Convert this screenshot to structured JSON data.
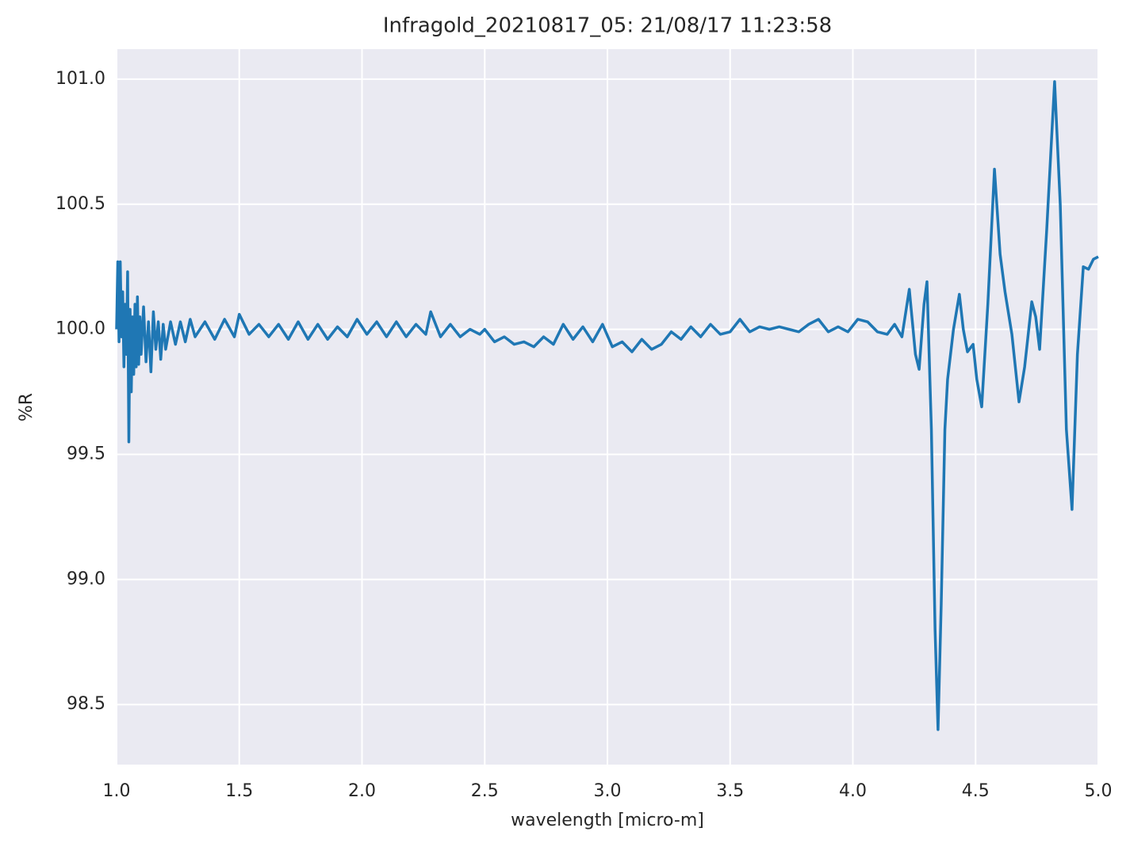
{
  "chart_data": {
    "type": "line",
    "title": "Infragold_20210817_05:  21/08/17 11:23:58",
    "x_label": "wavelength [micro-m]",
    "y_label": "%R",
    "grid": true,
    "background": "#eaeaf2",
    "xlim": [
      1.0,
      5.0
    ],
    "ylim": [
      98.26,
      101.12
    ],
    "xticks": [
      {
        "value": 1,
        "label": "1.0"
      },
      1.5,
      {
        "value": 2,
        "label": "2.0"
      },
      2.5,
      {
        "value": 3,
        "label": "3.0"
      },
      3.5,
      {
        "value": 4,
        "label": "4.0"
      },
      4.5,
      {
        "value": 5,
        "label": "5.0"
      }
    ],
    "yticks": [
      98.5,
      {
        "value": 99,
        "label": "99.0"
      },
      99.5,
      {
        "value": 100,
        "label": "100.0"
      },
      100.5,
      {
        "value": 101,
        "label": "101.0"
      }
    ],
    "x": [
      1.0,
      1.005,
      1.01,
      1.015,
      1.02,
      1.025,
      1.03,
      1.035,
      1.04,
      1.045,
      1.05,
      1.055,
      1.06,
      1.065,
      1.07,
      1.075,
      1.08,
      1.085,
      1.09,
      1.095,
      1.1,
      1.11,
      1.12,
      1.13,
      1.14,
      1.15,
      1.16,
      1.17,
      1.18,
      1.19,
      1.2,
      1.22,
      1.24,
      1.26,
      1.28,
      1.3,
      1.32,
      1.36,
      1.4,
      1.44,
      1.48,
      1.5,
      1.54,
      1.58,
      1.62,
      1.66,
      1.7,
      1.74,
      1.78,
      1.82,
      1.86,
      1.9,
      1.94,
      1.98,
      2.02,
      2.06,
      2.1,
      2.14,
      2.18,
      2.22,
      2.26,
      2.28,
      2.32,
      2.36,
      2.4,
      2.44,
      2.48,
      2.5,
      2.54,
      2.58,
      2.62,
      2.66,
      2.7,
      2.74,
      2.78,
      2.82,
      2.86,
      2.9,
      2.94,
      2.98,
      3.02,
      3.06,
      3.1,
      3.14,
      3.18,
      3.22,
      3.26,
      3.3,
      3.34,
      3.38,
      3.42,
      3.46,
      3.5,
      3.54,
      3.58,
      3.62,
      3.66,
      3.7,
      3.74,
      3.78,
      3.82,
      3.86,
      3.9,
      3.94,
      3.98,
      4.02,
      4.06,
      4.1,
      4.14,
      4.17,
      4.2,
      4.23,
      4.255,
      4.27,
      4.29,
      4.302,
      4.32,
      4.335,
      4.347,
      4.36,
      4.375,
      4.386,
      4.41,
      4.434,
      4.45,
      4.467,
      4.49,
      4.505,
      4.525,
      4.55,
      4.577,
      4.6,
      4.62,
      4.648,
      4.677,
      4.7,
      4.729,
      4.745,
      4.761,
      4.79,
      4.822,
      4.845,
      4.87,
      4.893,
      4.915,
      4.939,
      4.96,
      4.98,
      5.0
    ],
    "series": [
      {
        "color": "#1f77b4",
        "values": [
          100.0,
          100.27,
          99.95,
          100.27,
          99.97,
          100.15,
          99.85,
          100.1,
          99.9,
          100.23,
          99.55,
          100.08,
          99.75,
          100.05,
          99.82,
          100.1,
          99.85,
          100.13,
          99.86,
          100.05,
          99.9,
          100.09,
          99.87,
          100.03,
          99.83,
          100.07,
          99.92,
          100.03,
          99.88,
          100.02,
          99.92,
          100.03,
          99.94,
          100.03,
          99.95,
          100.04,
          99.97,
          100.03,
          99.96,
          100.04,
          99.97,
          100.06,
          99.98,
          100.02,
          99.97,
          100.02,
          99.96,
          100.03,
          99.96,
          100.02,
          99.96,
          100.01,
          99.97,
          100.04,
          99.98,
          100.03,
          99.97,
          100.03,
          99.97,
          100.02,
          99.98,
          100.07,
          99.97,
          100.02,
          99.97,
          100.0,
          99.98,
          100.0,
          99.95,
          99.97,
          99.94,
          99.95,
          99.93,
          99.97,
          99.94,
          100.02,
          99.96,
          100.01,
          99.95,
          100.02,
          99.93,
          99.95,
          99.91,
          99.96,
          99.92,
          99.94,
          99.99,
          99.96,
          100.01,
          99.97,
          100.02,
          99.98,
          99.99,
          100.04,
          99.99,
          100.01,
          100.0,
          100.01,
          100.0,
          99.99,
          100.02,
          100.04,
          99.99,
          100.01,
          99.99,
          100.04,
          100.03,
          99.99,
          99.98,
          100.02,
          99.97,
          100.16,
          99.9,
          99.84,
          100.1,
          100.19,
          99.6,
          98.8,
          98.4,
          98.9,
          99.6,
          99.8,
          100.0,
          100.14,
          100.0,
          99.91,
          99.94,
          99.8,
          99.69,
          100.1,
          100.64,
          100.3,
          100.15,
          99.98,
          99.71,
          99.85,
          100.11,
          100.05,
          99.92,
          100.4,
          100.99,
          100.5,
          99.6,
          99.28,
          99.9,
          100.25,
          100.24,
          100.28,
          100.29
        ]
      }
    ]
  }
}
